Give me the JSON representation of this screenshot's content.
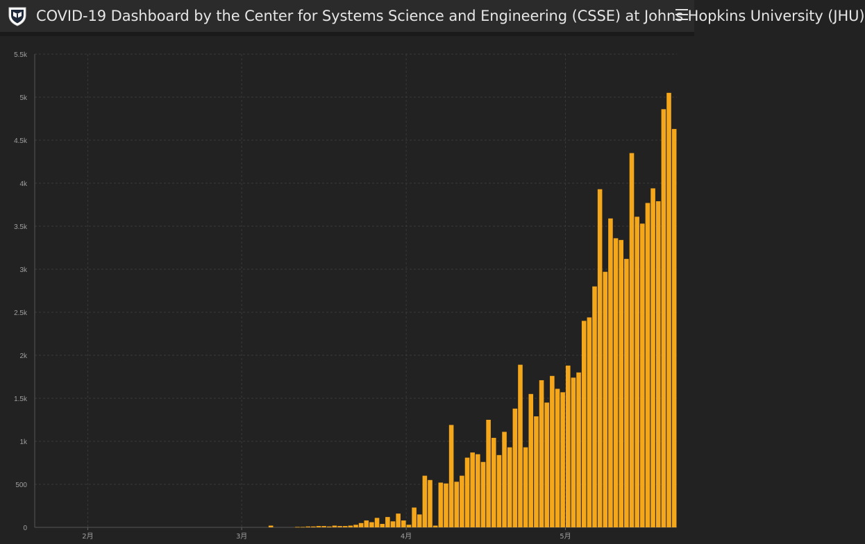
{
  "header": {
    "title": "COVID-19 Dashboard by the Center for Systems Science and Engineering (CSSE) at Johns Hopkins University (JHU)",
    "logo_icon": "university-shield-icon",
    "menu_icon": "hamburger-menu-icon"
  },
  "colors": {
    "bar": "#F5A71B",
    "background": "#222222",
    "header": "#2B2B2B",
    "gridline": "#3A3A3A",
    "text": "#E6E6E6",
    "tick_text": "#A0A0A0"
  },
  "chart_data": {
    "type": "bar",
    "title": "",
    "xlabel": "",
    "ylabel": "",
    "ylim": [
      0,
      5500
    ],
    "y_ticks": [
      0,
      500,
      1000,
      1500,
      2000,
      2500,
      3000,
      3500,
      4000,
      4500,
      5000,
      5500
    ],
    "y_tick_labels": [
      "0",
      "500",
      "1k",
      "1.5k",
      "2k",
      "2.5k",
      "3k",
      "3.5k",
      "4k",
      "4.5k",
      "5k",
      "5.5k"
    ],
    "x_ticks": [
      {
        "date": "2020-02-01",
        "label": "2月"
      },
      {
        "date": "2020-03-01",
        "label": "3月"
      },
      {
        "date": "2020-04-01",
        "label": "4月"
      },
      {
        "date": "2020-05-01",
        "label": "5月"
      }
    ],
    "grid": true,
    "start_date": "2020-01-22",
    "values": [
      0,
      0,
      0,
      0,
      0,
      0,
      0,
      0,
      0,
      0,
      0,
      0,
      0,
      0,
      0,
      0,
      0,
      0,
      0,
      0,
      0,
      0,
      0,
      0,
      0,
      0,
      0,
      0,
      0,
      0,
      0,
      0,
      0,
      0,
      0,
      0,
      0,
      0,
      0,
      0,
      0,
      0,
      0,
      0,
      20,
      0,
      0,
      0,
      0,
      5,
      5,
      10,
      10,
      15,
      15,
      10,
      20,
      15,
      15,
      20,
      30,
      50,
      80,
      60,
      110,
      40,
      120,
      70,
      160,
      80,
      30,
      230,
      150,
      600,
      550,
      20,
      520,
      510,
      1190,
      530,
      600,
      810,
      870,
      850,
      760,
      1250,
      1040,
      840,
      1110,
      930,
      1380,
      1890,
      930,
      1550,
      1290,
      1710,
      1450,
      1760,
      1610,
      1570,
      1880,
      1740,
      1800,
      2400,
      2440,
      2800,
      3930,
      2970,
      3590,
      3360,
      3340,
      3120,
      4350,
      3610,
      3530,
      3770,
      3940,
      3790,
      4860,
      5050,
      4630
    ]
  }
}
